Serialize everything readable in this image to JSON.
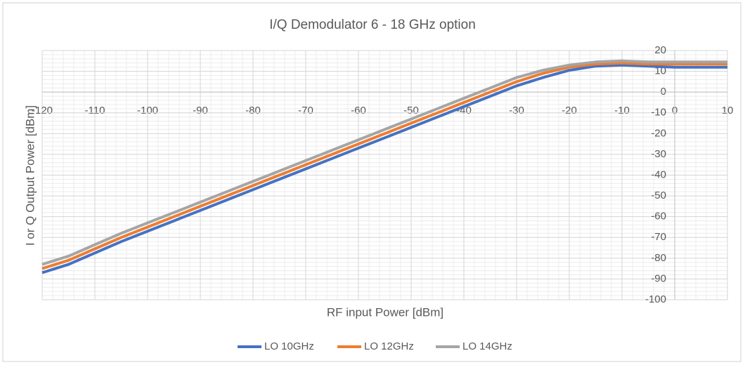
{
  "chart_data": {
    "type": "line",
    "title": "I/Q Demodulator 6 - 18 GHz option",
    "x_label": "RF input Power [dBm]",
    "y_label": "I or Q Output Power [dBm]",
    "x": [
      -120,
      -115,
      -110,
      -105,
      -100,
      -95,
      -90,
      -85,
      -80,
      -75,
      -70,
      -65,
      -60,
      -55,
      -50,
      -45,
      -40,
      -35,
      -30,
      -25,
      -20,
      -15,
      -10,
      -5,
      0,
      5,
      10
    ],
    "series": [
      {
        "name": "LO 10GHz",
        "color": "#4472c4",
        "values": [
          -87,
          -83,
          -77.5,
          -72,
          -67,
          -62,
          -57,
          -52,
          -47,
          -42,
          -37,
          -32,
          -27,
          -22,
          -17,
          -12,
          -7,
          -2,
          3,
          7,
          10.5,
          12.5,
          13,
          12.5,
          12,
          12,
          12
        ]
      },
      {
        "name": "LO 12GHz",
        "color": "#ed7d31",
        "values": [
          -85,
          -81,
          -75.5,
          -70,
          -65,
          -60,
          -55,
          -50,
          -45,
          -40,
          -35,
          -30,
          -25,
          -20,
          -15,
          -10,
          -5,
          0,
          5,
          9,
          12,
          13.5,
          14,
          13.5,
          13.5,
          13.5,
          13.5
        ]
      },
      {
        "name": "LO 14GHz",
        "color": "#a5a5a5",
        "values": [
          -83,
          -79,
          -73.5,
          -68,
          -63,
          -58,
          -53,
          -48,
          -43,
          -38,
          -33,
          -28,
          -23,
          -18,
          -13,
          -8,
          -3,
          2,
          7,
          10.5,
          13,
          14.5,
          15,
          14.5,
          14.5,
          14.5,
          14.5
        ]
      }
    ],
    "xlim": [
      -120,
      10
    ],
    "xticks": [
      -120,
      -110,
      -100,
      -90,
      -80,
      -70,
      -60,
      -50,
      -40,
      -30,
      -20,
      -10,
      0,
      10
    ],
    "ylim": [
      -100,
      20
    ],
    "yticks": [
      -100,
      -90,
      -80,
      -70,
      -60,
      -50,
      -40,
      -30,
      -20,
      -10,
      0,
      10,
      20
    ],
    "grid": true,
    "minor_grid": true,
    "legend": "bottom"
  }
}
